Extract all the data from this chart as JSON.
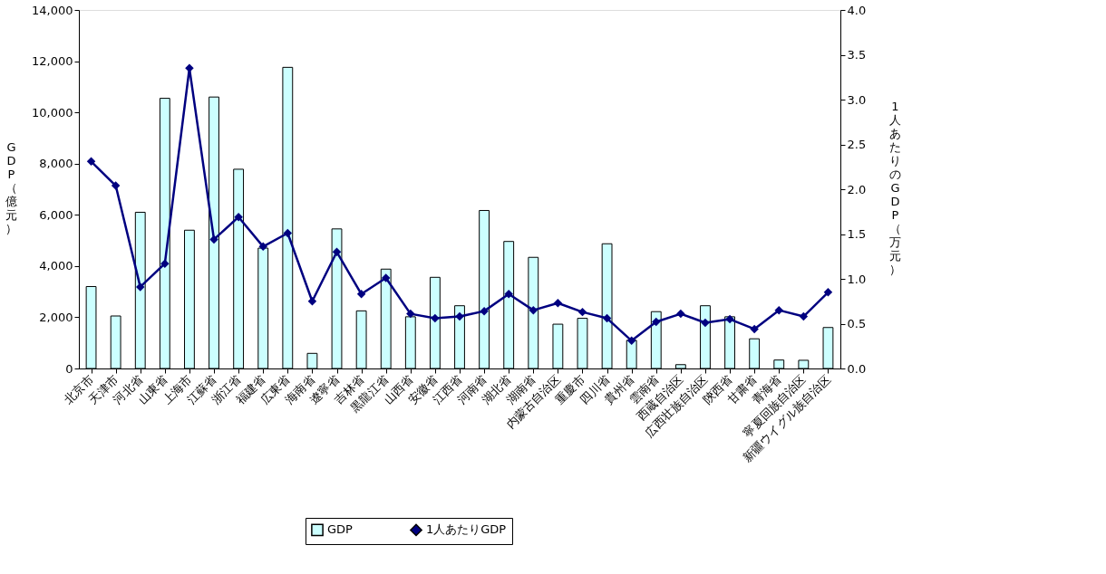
{
  "chart_data": {
    "type": "bar",
    "categories": [
      "北京市",
      "天津市",
      "河北省",
      "山東省",
      "上海市",
      "江蘇省",
      "浙江省",
      "福建省",
      "広東省",
      "海南省",
      "遼寧省",
      "吉林省",
      "黒龍江省",
      "山西省",
      "安徽省",
      "江西省",
      "河南省",
      "湖北省",
      "湖南省",
      "内蒙古自治区",
      "重慶市",
      "四川省",
      "貴州省",
      "雲南省",
      "西蔵自治区",
      "広西壮族自治区",
      "陝西省",
      "甘粛省",
      "青海省",
      "寧夏回族自治区",
      "新疆ウイグル族自治区"
    ],
    "series": [
      {
        "name": "GDP",
        "type": "bar",
        "color": "#ccffff",
        "values": [
          3200,
          2050,
          6100,
          10550,
          5400,
          10600,
          7780,
          4700,
          11760,
          590,
          5450,
          2250,
          3880,
          2020,
          3560,
          2450,
          6170,
          4960,
          4340,
          1730,
          1960,
          4870,
          1100,
          2220,
          150,
          2450,
          2020,
          1160,
          330,
          320,
          1600
        ]
      },
      {
        "name": "1人あたりGDP",
        "type": "line",
        "axis": "y2",
        "color": "#000080",
        "marker": "diamond",
        "values": [
          2.31,
          2.04,
          0.91,
          1.17,
          3.35,
          1.44,
          1.69,
          1.36,
          1.51,
          0.75,
          1.3,
          0.83,
          1.01,
          0.61,
          0.56,
          0.58,
          0.64,
          0.83,
          0.65,
          0.73,
          0.63,
          0.56,
          0.31,
          0.52,
          0.61,
          0.51,
          0.55,
          0.44,
          0.65,
          0.58,
          0.85
        ]
      }
    ],
    "ylabel": "GDP（億元）",
    "y2label": "1人あたりのGDP（万元）",
    "ylim": [
      0,
      14000
    ],
    "yticks": [
      0,
      {
        "value": 2000,
        "label": "2,000"
      },
      {
        "value": 4000,
        "label": "4,000"
      },
      {
        "value": 6000,
        "label": "6,000"
      },
      {
        "value": 8000,
        "label": "8,000"
      },
      {
        "value": 10000,
        "label": "10,000"
      },
      {
        "value": 12000,
        "label": "12,000"
      },
      {
        "value": 14000,
        "label": "14,000"
      }
    ],
    "y2lim": [
      0,
      4.0
    ],
    "y2ticks": [
      {
        "value": 0,
        "label": "0.0"
      },
      {
        "value": 0.5,
        "label": "0.5"
      },
      {
        "value": 1,
        "label": "1.0"
      },
      {
        "value": 1.5,
        "label": "1.5"
      },
      {
        "value": 2,
        "label": "2.0"
      },
      {
        "value": 2.5,
        "label": "2.5"
      },
      {
        "value": 3,
        "label": "3.0"
      },
      {
        "value": 3.5,
        "label": "3.5"
      },
      {
        "value": 4,
        "label": "4.0"
      }
    ],
    "grid": false,
    "legend": "bottom"
  }
}
